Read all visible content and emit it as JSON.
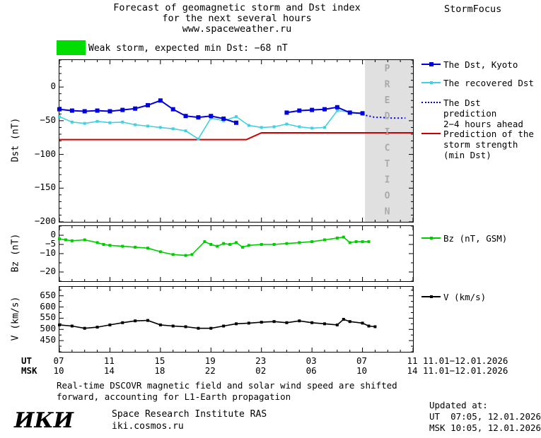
{
  "page": {
    "title_line1": "Forecast of geomagnetic storm and Dst index",
    "title_line2": "for the next several hours",
    "title_line3": "www.spaceweather.ru",
    "brand": "StormFocus"
  },
  "alert": {
    "box_color": "#00dd00",
    "text": "Weak storm, expected min Dst: −68 nT"
  },
  "legend": {
    "items": [
      {
        "label_lines": [
          "The Dst, Kyoto"
        ],
        "color": "#0000dd",
        "style": "solid",
        "marker": 6
      },
      {
        "label_lines": [
          "The recovered Dst"
        ],
        "color": "#44d0e0",
        "style": "solid",
        "marker": 4
      },
      {
        "label_lines": [
          "The Dst prediction",
          "2−4 hours ahead"
        ],
        "color": "#0000dd",
        "style": "dotted",
        "marker": 0
      },
      {
        "label_lines": [
          "Prediction of the",
          "storm strength",
          "(min Dst)"
        ],
        "color": "#cc0000",
        "style": "solid",
        "marker": 0
      },
      {
        "label_lines": [
          "Bz (nT, GSM)"
        ],
        "color": "#00cc00",
        "style": "solid",
        "marker": 4
      },
      {
        "label_lines": [
          "V (km/s)"
        ],
        "color": "#000000",
        "style": "solid",
        "marker": 4
      }
    ]
  },
  "axis": {
    "ut_header": "UT",
    "msk_header": "MSK",
    "ut_labels": [
      "07",
      "11",
      "15",
      "19",
      "23",
      "03",
      "07",
      "11"
    ],
    "msk_labels": [
      "10",
      "14",
      "18",
      "22",
      "02",
      "06",
      "10",
      "14"
    ],
    "date_range_ut": "11.01−12.01.2026",
    "date_range_msk": "11.01−12.01.2026"
  },
  "footer": {
    "note_line1": "Real-time DSCOVR magnetic field and solar wind speed are shifted",
    "note_line2": "forward, accounting for L1-Earth propagation",
    "updated_label": "Updated at:",
    "updated_ut": "UT  07:05, 12.01.2026",
    "updated_msk": "MSK 10:05, 12.01.2026",
    "logo": "ИКИ",
    "institute": "Space Research Institute RAS",
    "site": "iki.cosmos.ru"
  },
  "chart_data": [
    {
      "type": "line",
      "panel": "dst",
      "ylabel": "Dst (nT)",
      "ylim": [
        40,
        -200
      ],
      "yticks": [
        {
          "v": 0,
          "label": "0"
        },
        {
          "v": -50,
          "label": "−50"
        },
        {
          "v": -100,
          "label": "−100"
        },
        {
          "v": -150,
          "label": "−150"
        },
        {
          "v": -200,
          "label": "−200"
        }
      ],
      "yminor_step": 10,
      "xlim": [
        7,
        35
      ],
      "xticks": [
        7,
        11,
        15,
        19,
        23,
        27,
        31,
        35
      ],
      "xminor_step": 1,
      "prediction_region": {
        "x_start": 31.2,
        "x_end": 35,
        "label": "PREDICTION",
        "fill": "#e0e0e0",
        "text_color": "#aaaaaa"
      },
      "series": [
        {
          "id": "min-dst-prediction-series",
          "name": "Prediction of the storm strength (min Dst)",
          "color": "#cc0000",
          "width": 2,
          "x": [
            7,
            21.8,
            23,
            35
          ],
          "values": [
            -78,
            -78,
            -68,
            -68
          ]
        },
        {
          "id": "recovered-dst-series",
          "name": "The recovered Dst",
          "color": "#44d0e0",
          "width": 1.6,
          "marker": 4,
          "x": [
            7,
            8,
            9,
            10,
            11,
            12,
            13,
            14,
            15,
            16,
            17,
            18,
            19,
            20,
            21,
            22,
            23,
            24,
            25,
            26,
            27,
            28,
            29,
            30,
            31
          ],
          "values": [
            -44,
            -52,
            -54,
            -51,
            -53,
            -52,
            -56,
            -58,
            -60,
            -62,
            -65,
            -77,
            -46,
            -50,
            -44,
            -57,
            -60,
            -59,
            -55,
            -59,
            -61,
            -60,
            -35,
            -37,
            -40
          ]
        },
        {
          "id": "dst-kyoto-series",
          "name": "The Dst, Kyoto",
          "color": "#0000dd",
          "width": 2,
          "marker": 6,
          "x": [
            7,
            8,
            9,
            10,
            11,
            12,
            13,
            14,
            15,
            16,
            17,
            18,
            19,
            20,
            21,
            22,
            23,
            24,
            25,
            26,
            27,
            28,
            29,
            30,
            31
          ],
          "values": [
            -33,
            -35,
            -36,
            -35,
            -36,
            -34,
            -32,
            -27,
            -20,
            -33,
            -43,
            -45,
            -43,
            -47,
            -53,
            null,
            null,
            null,
            -38,
            -35,
            -34,
            -33,
            -30,
            -38,
            -39
          ]
        },
        {
          "id": "dst-prediction-series",
          "name": "The Dst prediction 2−4 hours ahead",
          "color": "#0000dd",
          "width": 2,
          "style": "dotted",
          "x": [
            31,
            31.5,
            32,
            32.5,
            33,
            33.5,
            34,
            34.4
          ],
          "values": [
            -41,
            -43,
            -45,
            -45,
            -46,
            -46,
            -46,
            -46
          ]
        }
      ]
    },
    {
      "type": "line",
      "panel": "bz",
      "ylabel": "Bz (nT)",
      "ylim": [
        5,
        -25
      ],
      "yticks": [
        {
          "v": 0,
          "label": "0"
        },
        {
          "v": -5,
          "label": "−5"
        },
        {
          "v": -10,
          "label": "−10"
        },
        {
          "v": -20,
          "label": "−20"
        }
      ],
      "yminor_step": 5,
      "xlim": [
        7,
        35
      ],
      "xticks": [
        7,
        11,
        15,
        19,
        23,
        27,
        31,
        35
      ],
      "xminor_step": 1,
      "series": [
        {
          "id": "bz-series",
          "name": "Bz (nT, GSM)",
          "color": "#00cc00",
          "width": 1.6,
          "marker": 4,
          "x": [
            7,
            7.5,
            8,
            9,
            10,
            10.5,
            11,
            12,
            13,
            14,
            15,
            16,
            17,
            17.5,
            18.5,
            19,
            19.5,
            20,
            20.5,
            21,
            21.5,
            22,
            23,
            24,
            25,
            26,
            27,
            28,
            29,
            29.5,
            30,
            30.5,
            31,
            31.5
          ],
          "values": [
            -2,
            -2.5,
            -3,
            -2.5,
            -4,
            -5,
            -5.5,
            -6,
            -6.5,
            -7,
            -9,
            -10.5,
            -11,
            -10.5,
            -3.5,
            -5,
            -6,
            -4.5,
            -5,
            -4,
            -6.5,
            -5.5,
            -5,
            -5,
            -4.5,
            -4,
            -3.5,
            -2.5,
            -1.5,
            -1,
            -4,
            -3.5,
            -3.5,
            -3.5
          ]
        }
      ]
    },
    {
      "type": "line",
      "panel": "v",
      "ylabel": "V (km/s)",
      "ylim": [
        690,
        400
      ],
      "yticks": [
        {
          "v": 650,
          "label": "650"
        },
        {
          "v": 600,
          "label": "600"
        },
        {
          "v": 550,
          "label": "550"
        },
        {
          "v": 500,
          "label": "500"
        },
        {
          "v": 450,
          "label": "450"
        }
      ],
      "yminor_step": 25,
      "xlim": [
        7,
        35
      ],
      "xticks": [
        7,
        11,
        15,
        19,
        23,
        27,
        31,
        35
      ],
      "xminor_step": 1,
      "series": [
        {
          "id": "v-series",
          "name": "V (km/s)",
          "color": "#000000",
          "width": 1.6,
          "marker": 4,
          "x": [
            7,
            8,
            9,
            10,
            11,
            12,
            13,
            14,
            15,
            16,
            17,
            18,
            19,
            20,
            21,
            22,
            23,
            24,
            25,
            26,
            27,
            28,
            29,
            29.5,
            30,
            31,
            31.5,
            32
          ],
          "values": [
            520,
            515,
            505,
            510,
            520,
            530,
            538,
            540,
            520,
            515,
            512,
            505,
            505,
            515,
            525,
            528,
            532,
            535,
            530,
            538,
            530,
            525,
            520,
            545,
            535,
            528,
            515,
            512
          ]
        }
      ]
    }
  ]
}
